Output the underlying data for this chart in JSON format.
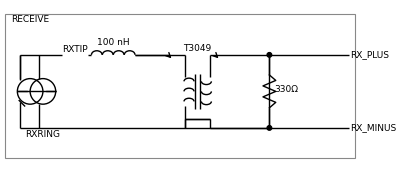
{
  "bg_color": "#ffffff",
  "line_color": "#000000",
  "border_color": "#888888",
  "labels": {
    "receive": "RECEIVE",
    "rxtip": "RXTIP",
    "rxring": "RXRING",
    "inductor": "100 nH",
    "transformer": "T3049",
    "rx_plus": "RX_PLUS",
    "rx_minus": "RX_MINUS",
    "resistor": "330Ω"
  },
  "figsize": [
    3.97,
    1.7
  ],
  "dpi": 100
}
